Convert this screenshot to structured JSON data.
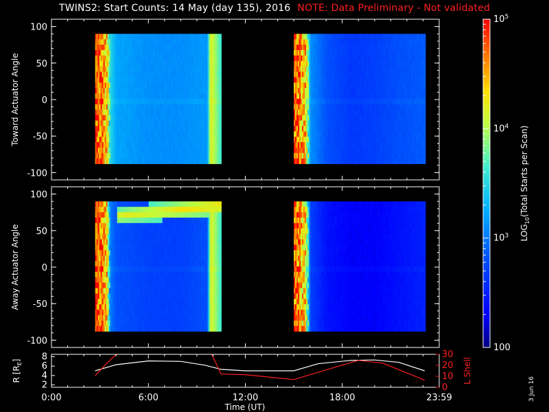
{
  "header": {
    "title": "TWINS2: Start Counts: 14 May (day 135), 2016",
    "note": "NOTE: Data Preliminary - Not validated"
  },
  "footer": {
    "date_stamp": "3 Jun 16"
  },
  "colors": {
    "background": "#000000",
    "axes": "#ffffff",
    "note_red": "#ff2020",
    "l_shell_red": "#ff2020",
    "colormap": [
      "#000080",
      "#0000ff",
      "#0060ff",
      "#00c8ff",
      "#50ffb0",
      "#ffff00",
      "#ff9000",
      "#ff2000",
      "#ff0000"
    ]
  },
  "chart_data": [
    {
      "type": "heatmap",
      "panel": "toward",
      "ylabel": "Toward Actuator Angle",
      "ylim": [
        -110,
        110
      ],
      "yticks": [
        "100",
        "50",
        "0",
        "-50",
        "-100"
      ],
      "xlim_hours": [
        0,
        24
      ],
      "data_intervals_hours": [
        [
          2.7,
          10.5
        ],
        [
          15.0,
          23.1
        ]
      ],
      "angle_range": [
        -88,
        90
      ],
      "time_profile_log10_counts": [
        [
          2.7,
          4.8
        ],
        [
          3.4,
          4.4
        ],
        [
          3.6,
          3.5
        ],
        [
          4.0,
          3.2
        ],
        [
          6.0,
          3.1
        ],
        [
          8.0,
          3.1
        ],
        [
          9.6,
          3.15
        ],
        [
          9.8,
          4.2
        ],
        [
          10.5,
          3.6
        ],
        [
          15.0,
          4.7
        ],
        [
          15.7,
          4.4
        ],
        [
          16.0,
          3.1
        ],
        [
          17.0,
          2.8
        ],
        [
          18.5,
          2.65
        ],
        [
          20.0,
          2.7
        ],
        [
          21.5,
          2.8
        ],
        [
          23.1,
          2.85
        ]
      ],
      "colorbar": {
        "label": "LOG10(Total Starts per Scan)",
        "range_log10": [
          2,
          5
        ],
        "ticks": [
          "10^5",
          "10^4",
          "10^3",
          "100"
        ]
      },
      "grid": false
    },
    {
      "type": "heatmap",
      "panel": "away",
      "ylabel": "Away Actuator Angle",
      "ylim": [
        -110,
        110
      ],
      "yticks": [
        "100",
        "50",
        "0",
        "-50",
        "-100"
      ],
      "xlim_hours": [
        0,
        24
      ],
      "data_intervals_hours": [
        [
          2.7,
          10.5
        ],
        [
          15.0,
          23.1
        ]
      ],
      "angle_range": [
        -88,
        90
      ],
      "time_profile_log10_counts": [
        [
          2.7,
          4.8
        ],
        [
          3.4,
          4.4
        ],
        [
          3.6,
          3.0
        ],
        [
          4.0,
          2.8
        ],
        [
          6.0,
          2.7
        ],
        [
          8.0,
          2.7
        ],
        [
          9.6,
          2.8
        ],
        [
          9.8,
          4.2
        ],
        [
          10.5,
          3.6
        ],
        [
          15.0,
          4.7
        ],
        [
          15.7,
          4.3
        ],
        [
          16.0,
          2.7
        ],
        [
          17.0,
          2.4
        ],
        [
          18.5,
          2.3
        ],
        [
          20.0,
          2.3
        ],
        [
          21.5,
          2.4
        ],
        [
          23.1,
          2.5
        ]
      ],
      "high_angle_band": {
        "angle_range": [
          62,
          90
        ],
        "log10_counts": 4.2,
        "time_hours": [
          4.0,
          10.5
        ]
      },
      "colorbar": {
        "label": "LOG10(Total Starts per Scan)",
        "range_log10": [
          2,
          5
        ],
        "ticks": [
          "10^5",
          "10^4",
          "10^3",
          "100"
        ]
      },
      "grid": false
    },
    {
      "type": "line",
      "panel": "orbit",
      "xlabel": "Time (UT)",
      "xticks": [
        "0:00",
        "6:00",
        "12:00",
        "18:00",
        "23:59"
      ],
      "xlim_hours": [
        0,
        24
      ],
      "left_axis": {
        "label": "R [RE]",
        "ylim": [
          1.5,
          8.5
        ],
        "yticks": [
          "8",
          "6",
          "4",
          "2"
        ]
      },
      "right_axis": {
        "label": "L Shell",
        "ylim": [
          0,
          30
        ],
        "yticks": [
          "30",
          "20",
          "10",
          "0"
        ]
      },
      "series": [
        {
          "name": "R [RE]",
          "axis": "left",
          "x": [
            2.7,
            4.0,
            6.0,
            8.0,
            9.5,
            10.5,
            12.0,
            15.0,
            16.5,
            18.5,
            20.0,
            21.5,
            23.1
          ],
          "y": [
            5.0,
            6.3,
            7.1,
            7.0,
            6.2,
            5.3,
            5.0,
            5.0,
            6.5,
            7.2,
            7.3,
            6.8,
            5.0
          ]
        },
        {
          "name": "L Shell",
          "axis": "right",
          "x": [
            2.7,
            3.3,
            4.0,
            4.35,
            9.6,
            10.5,
            12.0,
            15.0,
            17.5,
            19.0,
            20.5,
            23.1
          ],
          "y": [
            10.5,
            20,
            30,
            40,
            40,
            12,
            11.5,
            7,
            18,
            24.5,
            22,
            6.5
          ]
        }
      ]
    }
  ]
}
